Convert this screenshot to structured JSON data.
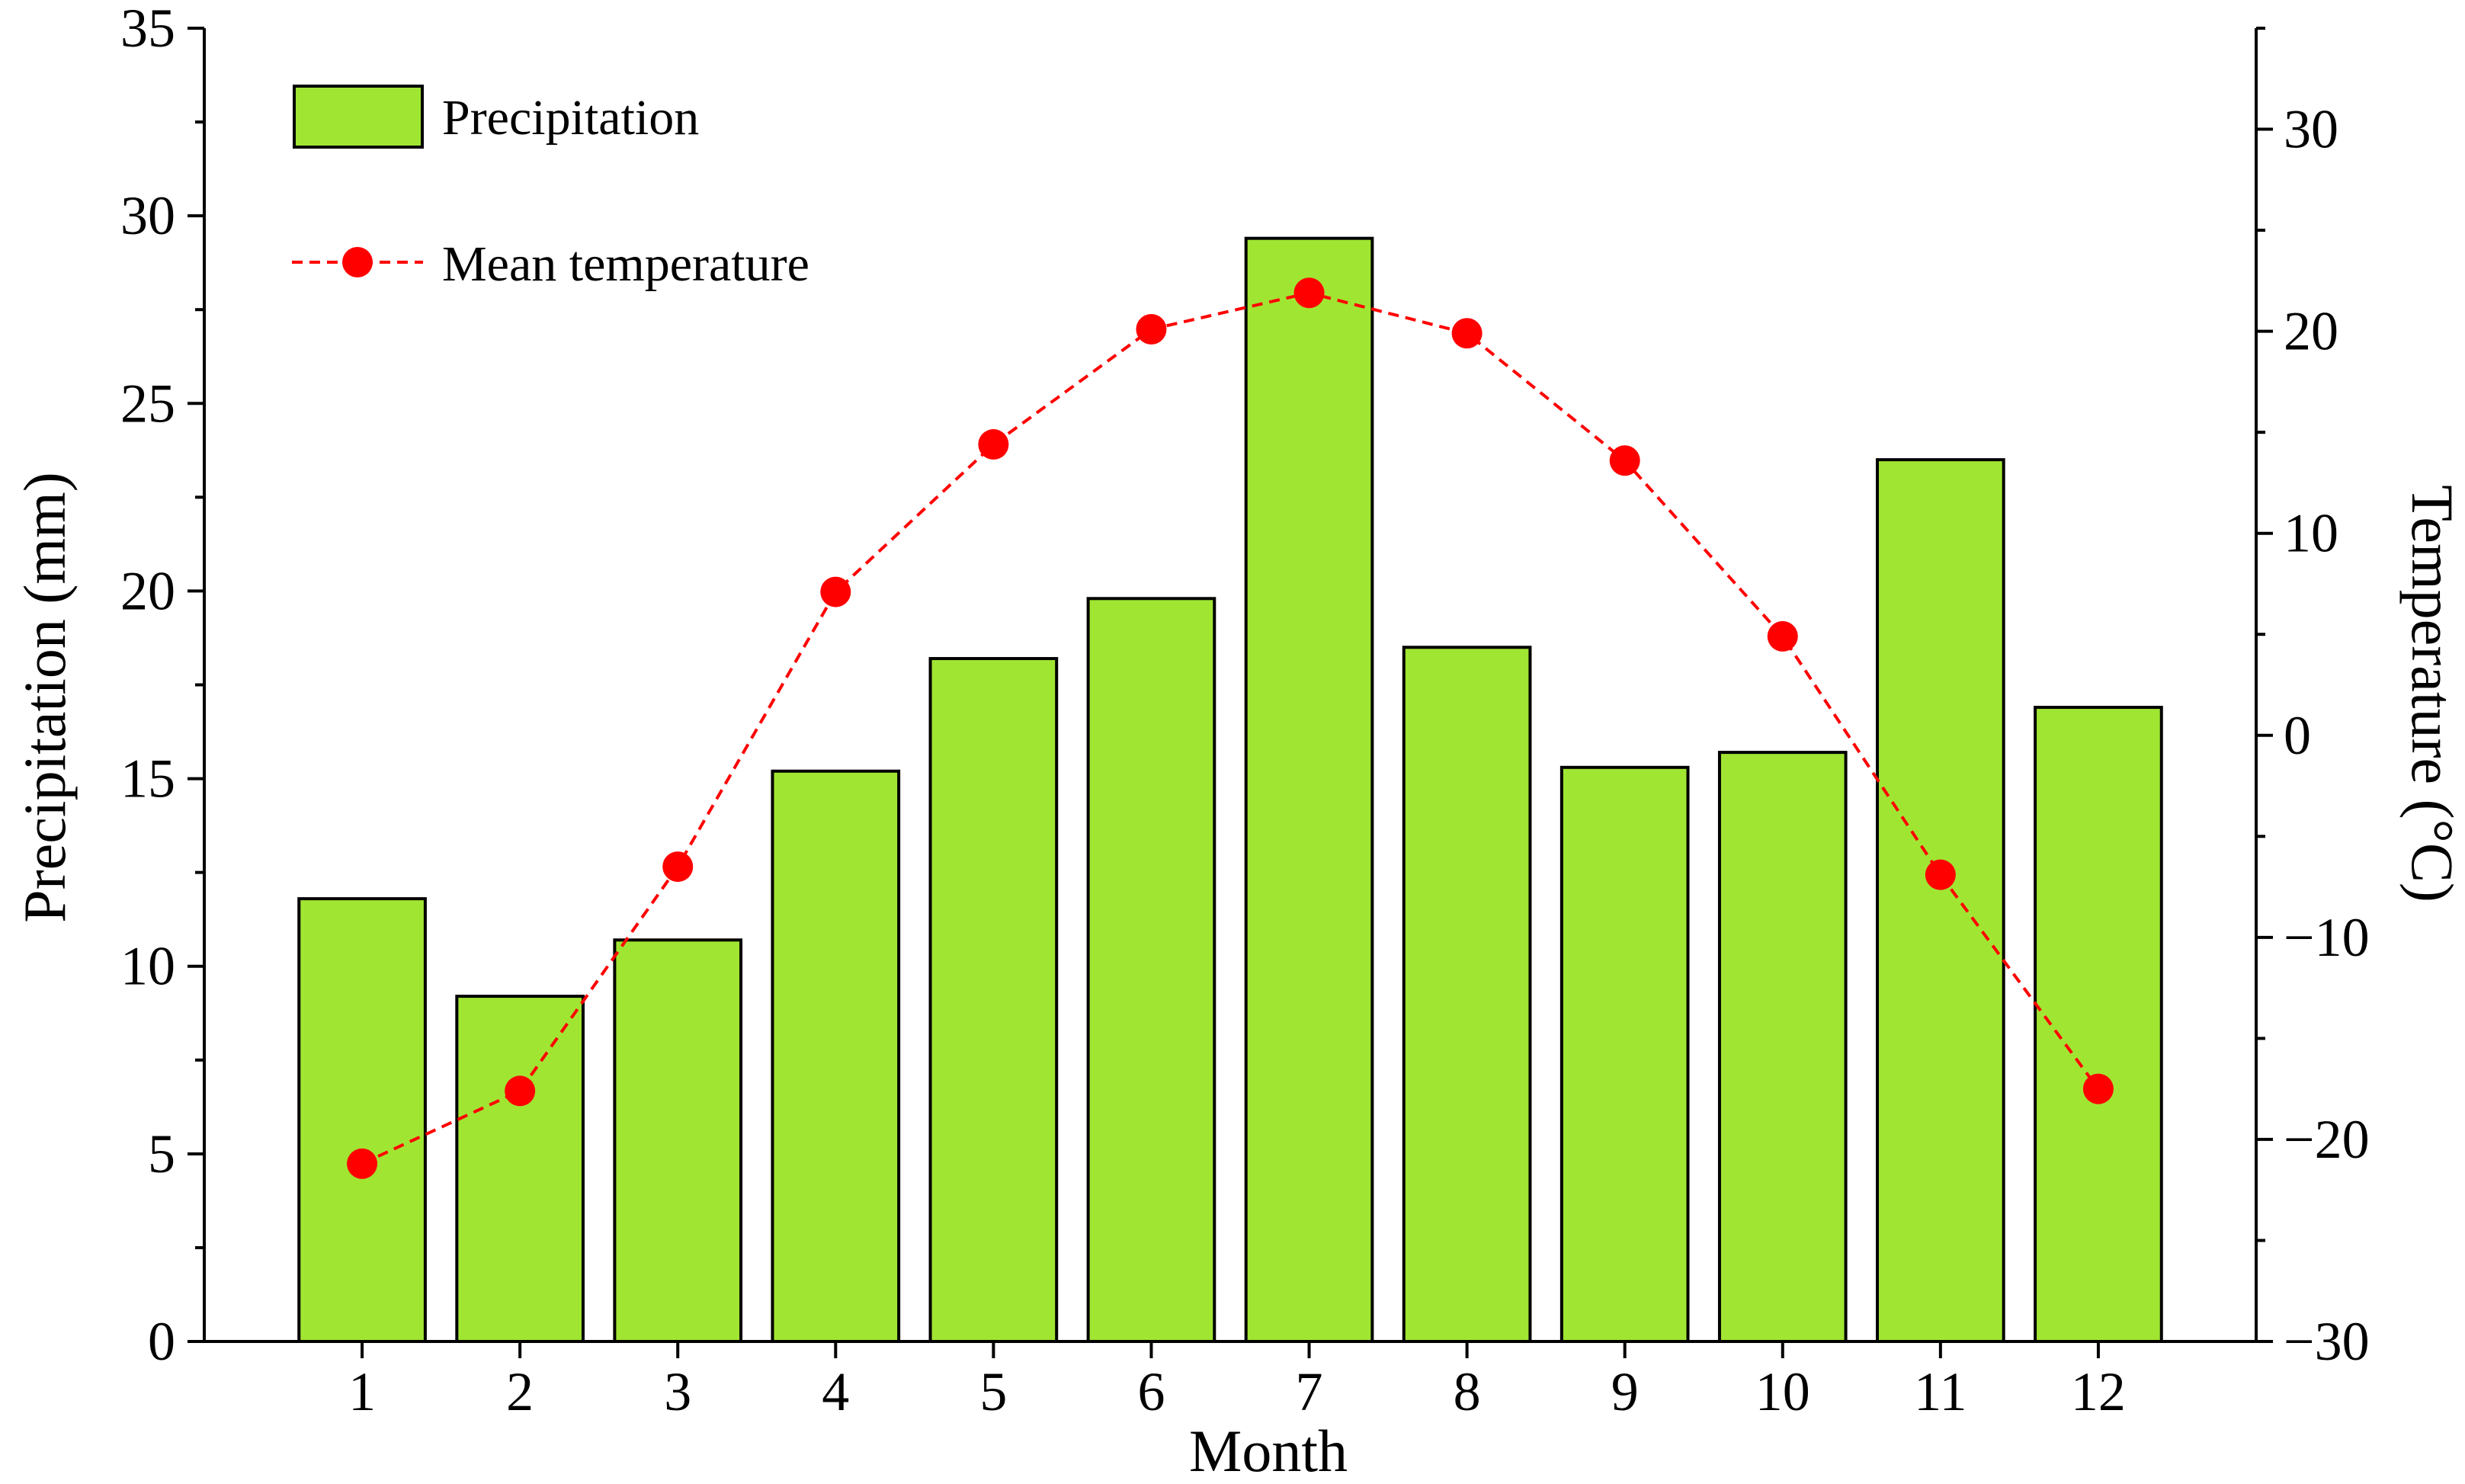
{
  "chart_data": {
    "type": "bar+line",
    "categories": [
      "1",
      "2",
      "3",
      "4",
      "5",
      "6",
      "7",
      "8",
      "9",
      "10",
      "11",
      "12"
    ],
    "series": [
      {
        "name": "Precipitation",
        "type": "bar",
        "axis": "left",
        "color": "#A1E533",
        "values": [
          11.8,
          9.2,
          10.7,
          15.2,
          18.2,
          19.8,
          29.4,
          18.5,
          15.3,
          15.7,
          23.5,
          16.9
        ]
      },
      {
        "name": "Mean temperature",
        "type": "line",
        "axis": "right",
        "color": "#FF0000",
        "style": "dashed",
        "marker": "circle",
        "values": [
          -21.2,
          -17.6,
          -6.5,
          7.1,
          14.4,
          20.1,
          21.9,
          19.9,
          13.6,
          4.9,
          -6.9,
          -17.5
        ]
      }
    ],
    "xlabel": "Month",
    "ylabel": "Precipitation (mm)",
    "y2label": "Temperature (°C)",
    "ylim": [
      0,
      35
    ],
    "y2lim": [
      -30,
      35
    ],
    "yticks": [
      "0",
      "5",
      "10",
      "15",
      "20",
      "25",
      "30",
      "35"
    ],
    "y2ticks": [
      "−30",
      "−20",
      "−10",
      "0",
      "10",
      "20",
      "30"
    ],
    "legend": {
      "position": "top-left",
      "entries": [
        "Precipitation",
        "Mean temperature"
      ]
    },
    "grid": false
  }
}
